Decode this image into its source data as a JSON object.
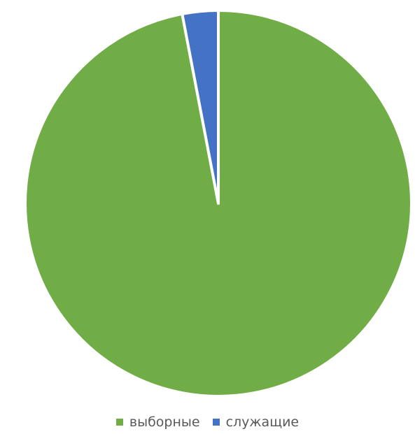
{
  "chart_data": {
    "type": "pie",
    "title": "",
    "categories": [
      "выборные",
      "служащие"
    ],
    "values": [
      97,
      3
    ],
    "colors": [
      "#70ad47",
      "#4472c4"
    ],
    "start_angle_deg": 0,
    "direction": "clockwise",
    "legend_position": "bottom"
  }
}
